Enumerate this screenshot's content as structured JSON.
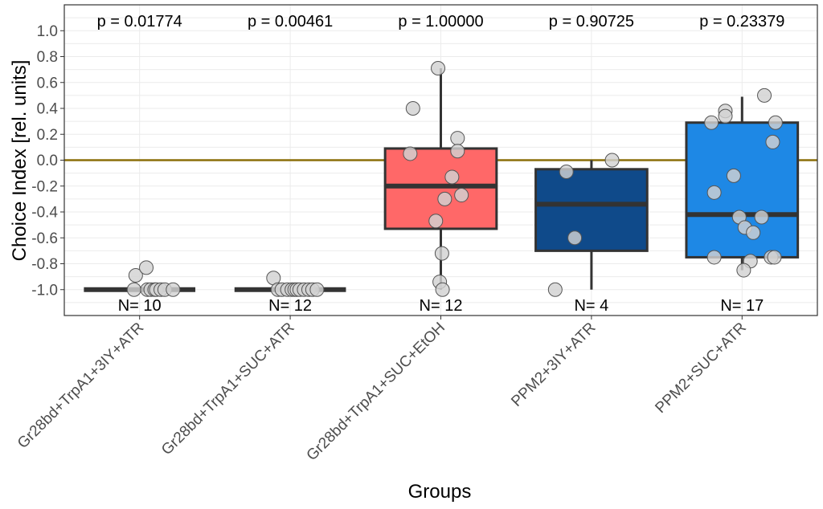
{
  "chart_data": {
    "type": "box",
    "title": "",
    "xlabel": "Groups",
    "ylabel": "Choice Index [rel. units]",
    "ylim": [
      -1.2,
      1.2
    ],
    "yticks": [
      -1.0,
      -0.8,
      -0.6,
      -0.4,
      -0.2,
      0.0,
      0.2,
      0.4,
      0.6,
      0.8,
      1.0
    ],
    "ytick_labels": [
      "-1.0",
      "-0.8",
      "-0.6",
      "-0.4",
      "-0.2",
      "0.0",
      "0.2",
      "0.4",
      "0.6",
      "0.8",
      "1.0"
    ],
    "grid": true,
    "reference_line": {
      "y": 0.0,
      "color": "#8b6f0a"
    },
    "categories": [
      "Gr28bd+TrpA1+3IY+ATR",
      "Gr28bd+TrpA1+SUC+ATR",
      "Gr28bd+TrpA1+SUC+EtOH",
      "PPM2+3IY+ATR",
      "PPM2+SUC+ATR"
    ],
    "series": [
      {
        "category": "Gr28bd+TrpA1+3IY+ATR",
        "fill": "#4d4d4d",
        "q1": -1.0,
        "median": -1.0,
        "q3": -1.0,
        "whisker_low": -1.0,
        "whisker_high": -1.0,
        "p_label": "p = 0.01774",
        "n_label": "N= 10",
        "points": [
          [
            -0.1,
            -1.0
          ],
          [
            -0.07,
            -0.89
          ],
          [
            0.12,
            -0.83
          ],
          [
            0.14,
            -1.0
          ],
          [
            0.2,
            -1.0
          ],
          [
            0.27,
            -1.0
          ],
          [
            0.3,
            -1.0
          ],
          [
            0.38,
            -1.0
          ],
          [
            0.45,
            -1.0
          ],
          [
            0.6,
            -1.0
          ]
        ]
      },
      {
        "category": "Gr28bd+TrpA1+SUC+ATR",
        "fill": "#4d4d4d",
        "q1": -1.0,
        "median": -1.0,
        "q3": -1.0,
        "whisker_low": -1.0,
        "whisker_high": -1.0,
        "p_label": "p = 0.00461",
        "n_label": "N= 12",
        "points": [
          [
            -0.3,
            -0.91
          ],
          [
            -0.22,
            -1.0
          ],
          [
            -0.15,
            -1.0
          ],
          [
            -0.05,
            -1.0
          ],
          [
            0.03,
            -1.0
          ],
          [
            0.08,
            -1.0
          ],
          [
            0.12,
            -1.0
          ],
          [
            0.17,
            -1.0
          ],
          [
            0.25,
            -1.0
          ],
          [
            0.33,
            -1.0
          ],
          [
            0.4,
            -1.0
          ],
          [
            0.48,
            -1.0
          ]
        ]
      },
      {
        "category": "Gr28bd+TrpA1+SUC+EtOH",
        "fill": "#ff6868",
        "q1": -0.53,
        "median": -0.2,
        "q3": 0.09,
        "whisker_low": -1.0,
        "whisker_high": 0.71,
        "p_label": "p = 1.00000",
        "n_label": "N= 12",
        "points": [
          [
            -0.5,
            0.4
          ],
          [
            -0.55,
            0.05
          ],
          [
            -0.05,
            0.71
          ],
          [
            0.3,
            0.17
          ],
          [
            0.3,
            0.07
          ],
          [
            0.2,
            -0.13
          ],
          [
            0.07,
            -0.3
          ],
          [
            0.37,
            -0.27
          ],
          [
            -0.09,
            -0.47
          ],
          [
            0.02,
            -0.72
          ],
          [
            -0.02,
            -0.94
          ],
          [
            0.03,
            -1.0
          ]
        ]
      },
      {
        "category": "PPM2+3IY+ATR",
        "fill": "#0f4a8a",
        "q1": -0.7,
        "median": -0.34,
        "q3": -0.07,
        "whisker_low": -1.0,
        "whisker_high": 0.0,
        "p_label": "p = 0.90725",
        "n_label": "N= 4",
        "points": [
          [
            -0.45,
            -0.09
          ],
          [
            0.37,
            0.0
          ],
          [
            -0.3,
            -0.6
          ],
          [
            -0.65,
            -1.0
          ]
        ]
      },
      {
        "category": "PPM2+SUC+ATR",
        "fill": "#1e88e5",
        "q1": -0.75,
        "median": -0.42,
        "q3": 0.29,
        "whisker_low": -0.85,
        "whisker_high": 0.49,
        "p_label": "p = 0.23379",
        "n_label": "N= 17",
        "points": [
          [
            -0.55,
            0.29
          ],
          [
            -0.3,
            0.38
          ],
          [
            -0.3,
            0.34
          ],
          [
            0.4,
            0.5
          ],
          [
            0.6,
            0.29
          ],
          [
            0.55,
            0.14
          ],
          [
            -0.15,
            -0.12
          ],
          [
            -0.5,
            -0.25
          ],
          [
            -0.05,
            -0.44
          ],
          [
            0.05,
            -0.52
          ],
          [
            0.35,
            -0.44
          ],
          [
            0.2,
            -0.56
          ],
          [
            -0.5,
            -0.75
          ],
          [
            0.15,
            -0.78
          ],
          [
            0.52,
            -0.75
          ],
          [
            0.58,
            -0.75
          ],
          [
            0.03,
            -0.85
          ]
        ]
      }
    ]
  }
}
